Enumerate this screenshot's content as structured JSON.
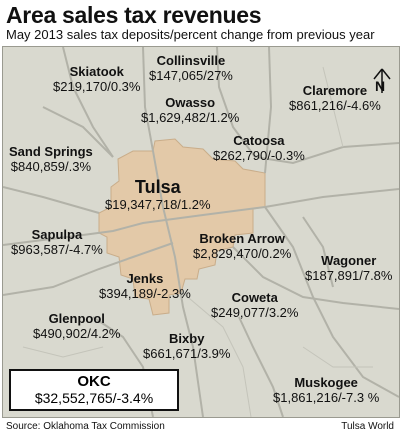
{
  "header": {
    "title": "Area sales tax revenues",
    "subtitle": "May 2013 sales tax deposits/percent change from previous year"
  },
  "map": {
    "north_label": "N",
    "colors": {
      "background": "#d9d9cf",
      "tulsa_area": "#e3c9a8",
      "roads": "#b7b7ae",
      "text": "#111111"
    },
    "cities": [
      {
        "id": "skiatook",
        "name": "Skiatook",
        "value": "$219,170/0.3%"
      },
      {
        "id": "collinsville",
        "name": "Collinsville",
        "value": "$147,065/27%"
      },
      {
        "id": "owasso",
        "name": "Owasso",
        "value": "$1,629,482/1.2%"
      },
      {
        "id": "claremore",
        "name": "Claremore",
        "value": "$861,216/-4.6%"
      },
      {
        "id": "sand-springs",
        "name": "Sand Springs",
        "value": "$840,859/.3%"
      },
      {
        "id": "catoosa",
        "name": "Catoosa",
        "value": "$262,790/-0.3%"
      },
      {
        "id": "tulsa",
        "name": "Tulsa",
        "value": "$19,347,718/1.2%"
      },
      {
        "id": "sapulpa",
        "name": "Sapulpa",
        "value": "$963,587/-4.7%"
      },
      {
        "id": "broken-arrow",
        "name": "Broken Arrow",
        "value": "$2,829,470/0.2%"
      },
      {
        "id": "wagoner",
        "name": "Wagoner",
        "value": "$187,891/7.8%"
      },
      {
        "id": "jenks",
        "name": "Jenks",
        "value": "$394,189/-2.3%"
      },
      {
        "id": "coweta",
        "name": "Coweta",
        "value": "$249,077/3.2%"
      },
      {
        "id": "glenpool",
        "name": "Glenpool",
        "value": "$490,902/4.2%"
      },
      {
        "id": "bixby",
        "name": "Bixby",
        "value": "$661,671/3.9%"
      },
      {
        "id": "muskogee",
        "name": "Muskogee",
        "value": "$1,861,216/-7.3 %"
      }
    ],
    "okc": {
      "name": "OKC",
      "value": "$32,552,765/-3.4%"
    }
  },
  "footer": {
    "source": "Source: Oklahoma Tax Commission",
    "credit": "Tulsa World"
  }
}
